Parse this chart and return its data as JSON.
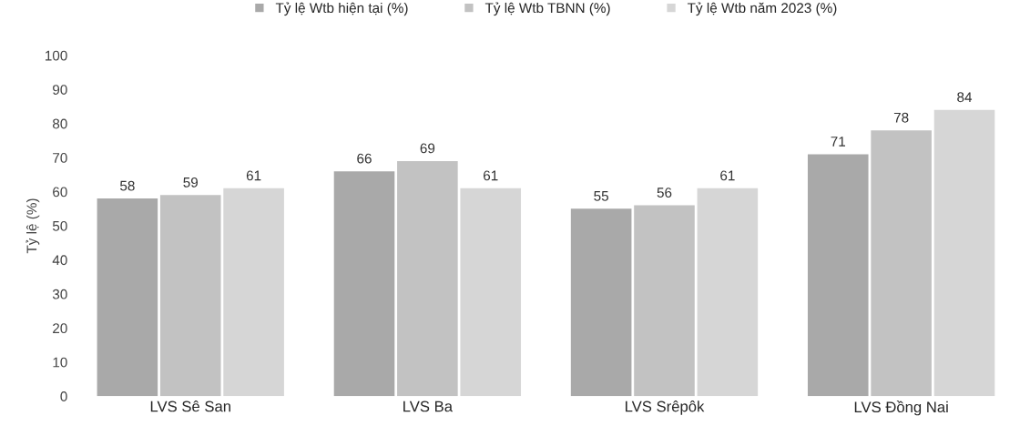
{
  "chart_data": {
    "type": "bar",
    "ylabel": "Tỷ lệ (%)",
    "categories": [
      "LVS Sê San",
      "LVS Ba",
      "LVS Srêpôk",
      "LVS Đồng Nai"
    ],
    "series": [
      {
        "name": "Tỷ lệ Wtb hiện tại (%)",
        "color": "#a9a9a9",
        "values": [
          58,
          66,
          55,
          71
        ]
      },
      {
        "name": "Tỷ lệ Wtb TBNN (%)",
        "color": "#c2c2c2",
        "values": [
          59,
          69,
          56,
          78
        ]
      },
      {
        "name": "Tỷ lệ Wtb năm 2023 (%)",
        "color": "#d6d6d6",
        "values": [
          61,
          61,
          61,
          84
        ]
      }
    ],
    "ylim": [
      0,
      100
    ],
    "yticks": [
      0,
      10,
      20,
      30,
      40,
      50,
      60,
      70,
      80,
      90,
      100
    ],
    "data_labels": true,
    "legend": "top",
    "grid": false
  }
}
